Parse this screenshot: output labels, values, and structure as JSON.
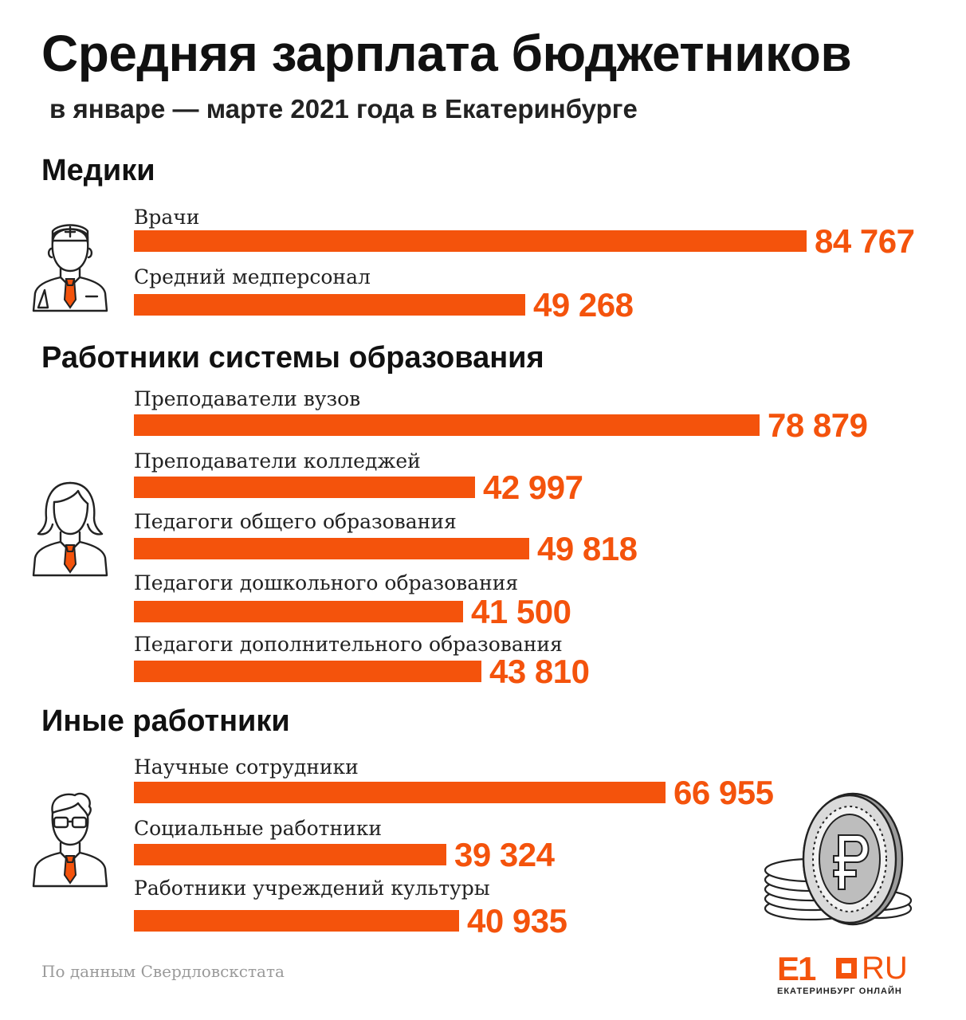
{
  "chart_data": {
    "type": "bar",
    "orientation": "horizontal",
    "title": "Средняя зарплата бюджетников",
    "subtitle": "в январе — марте 2021 года в Екатеринбурге",
    "groups": [
      {
        "name": "Медики",
        "icon": "doctor-icon",
        "items": [
          {
            "label": "Врачи",
            "value": 84767,
            "value_text": "84 767"
          },
          {
            "label": "Средний медперсонал",
            "value": 49268,
            "value_text": "49 268"
          }
        ]
      },
      {
        "name": "Работники системы образования",
        "icon": "teacher-icon",
        "items": [
          {
            "label": "Преподаватели вузов",
            "value": 78879,
            "value_text": "78 879"
          },
          {
            "label": "Преподаватели колледжей",
            "value": 42997,
            "value_text": "42 997"
          },
          {
            "label": "Педагоги общего образования",
            "value": 49818,
            "value_text": "49 818"
          },
          {
            "label": "Педагоги дошкольного образования",
            "value": 41500,
            "value_text": "41 500"
          },
          {
            "label": "Педагоги дополнительного образования",
            "value": 43810,
            "value_text": "43 810"
          }
        ]
      },
      {
        "name": "Иные работники",
        "icon": "worker-icon",
        "items": [
          {
            "label": "Научные сотрудники",
            "value": 66955,
            "value_text": "66 955"
          },
          {
            "label": "Социальные работники",
            "value": 39324,
            "value_text": "39 324"
          },
          {
            "label": "Работники учреждений культуры",
            "value": 40935,
            "value_text": "40 935"
          }
        ]
      }
    ],
    "bar_color": "#f4530c",
    "value_color": "#f4530c",
    "source": "По данным Свердловскстата"
  },
  "logo": {
    "mark": "E1",
    "domain": "RU",
    "tagline": "ЕКАТЕРИНБУРГ ОНЛАЙН"
  }
}
